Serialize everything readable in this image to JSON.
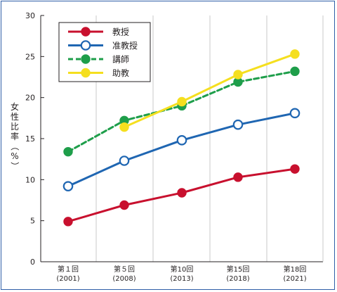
{
  "chart_data": {
    "type": "line",
    "title": "",
    "xlabel": "",
    "ylabel": "女性比率（%）",
    "ylim": [
      0,
      30
    ],
    "yticks": [
      0,
      5,
      10,
      15,
      20,
      25,
      30
    ],
    "grid": "vertical",
    "legend_position": "top-left",
    "categories": [
      {
        "line1": "第１回",
        "line2": "(2001)"
      },
      {
        "line1": "第５回",
        "line2": "(2008)"
      },
      {
        "line1": "第10回",
        "line2": "(2013)"
      },
      {
        "line1": "第15回",
        "line2": "(2018)"
      },
      {
        "line1": "第18回",
        "line2": "(2021)"
      }
    ],
    "series": [
      {
        "name": "教授",
        "color": "#c8102e",
        "marker": "filled",
        "dash": "solid",
        "values": [
          4.9,
          6.9,
          8.4,
          10.3,
          11.3
        ]
      },
      {
        "name": "准教授",
        "color": "#1f66b2",
        "marker": "open",
        "dash": "solid",
        "values": [
          9.2,
          12.3,
          14.8,
          16.7,
          18.1
        ]
      },
      {
        "name": "講師",
        "color": "#1e9e4a",
        "marker": "filled",
        "dash": "dashed",
        "values": [
          13.4,
          17.2,
          19.0,
          21.9,
          23.2
        ]
      },
      {
        "name": "助教",
        "color": "#f5df1f",
        "marker": "filled",
        "dash": "solid",
        "values": [
          null,
          16.4,
          19.5,
          22.8,
          25.3
        ]
      }
    ]
  }
}
